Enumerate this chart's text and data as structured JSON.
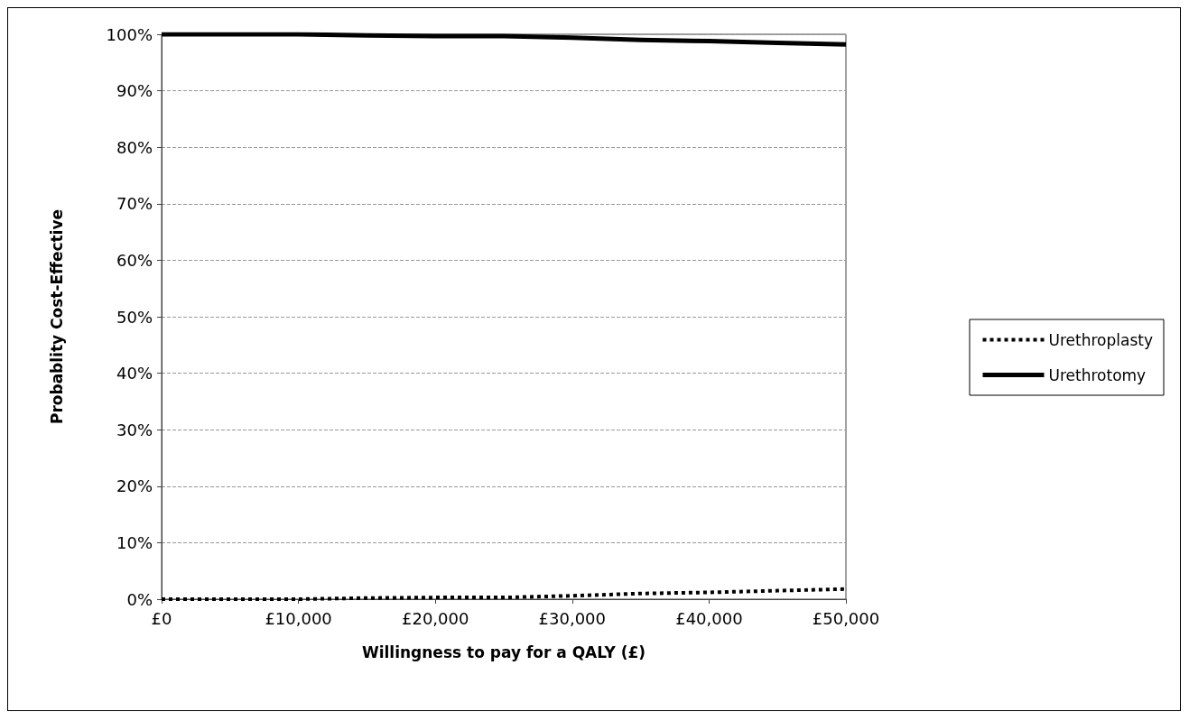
{
  "chart_data": {
    "type": "line",
    "xlabel": "Willingness to pay for a QALY (£)",
    "ylabel": "Probablity Cost-Effective",
    "x": [
      0,
      5000,
      10000,
      15000,
      20000,
      25000,
      30000,
      35000,
      40000,
      45000,
      50000
    ],
    "series": [
      {
        "name": "Urethroplasty",
        "color": "#000000",
        "line_style": "dotted",
        "values": [
          0,
          0,
          0,
          0.2,
          0.3,
          0.3,
          0.6,
          1.0,
          1.2,
          1.5,
          1.8
        ]
      },
      {
        "name": "Urethrotomy",
        "color": "#000000",
        "line_style": "solid",
        "values": [
          100,
          100,
          100,
          99.8,
          99.7,
          99.7,
          99.4,
          99.0,
          98.8,
          98.5,
          98.2
        ]
      }
    ],
    "xlim": [
      0,
      50000
    ],
    "xticks": [
      {
        "value": 0,
        "label": "£0"
      },
      {
        "value": 10000,
        "label": "£10,000"
      },
      {
        "value": 20000,
        "label": "£20,000"
      },
      {
        "value": 30000,
        "label": "£30,000"
      },
      {
        "value": 40000,
        "label": "£40,000"
      },
      {
        "value": 50000,
        "label": "£50,000"
      }
    ],
    "ylim": [
      0,
      100
    ],
    "yticks": [
      {
        "value": 0,
        "label": "0%"
      },
      {
        "value": 10,
        "label": "10%"
      },
      {
        "value": 20,
        "label": "20%"
      },
      {
        "value": 30,
        "label": "30%"
      },
      {
        "value": 40,
        "label": "40%"
      },
      {
        "value": 50,
        "label": "50%"
      },
      {
        "value": 60,
        "label": "60%"
      },
      {
        "value": 70,
        "label": "70%"
      },
      {
        "value": 80,
        "label": "80%"
      },
      {
        "value": 90,
        "label": "90%"
      },
      {
        "value": 100,
        "label": "100%"
      }
    ],
    "grid": "y",
    "legend": "right",
    "marker": "none"
  }
}
